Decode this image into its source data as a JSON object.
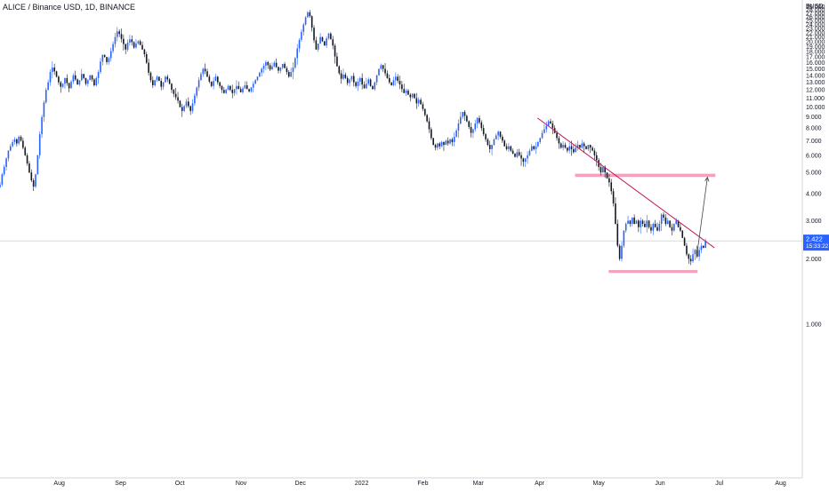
{
  "header": {
    "title": "ALICE / Binance USD, 1D, BINANCE",
    "currency": "BUSD"
  },
  "price_badge": {
    "price": "2.422",
    "countdown": "15:33:22",
    "color": "#2962ff"
  },
  "colors": {
    "up": "#2962ff",
    "down": "#131722",
    "trendline": "#c2185b",
    "zone": "#f48fb1",
    "arrow": "#434651"
  },
  "chart_data": {
    "type": "candlestick",
    "title": "ALICE / Binance USD, 1D, BINANCE",
    "ylabel": "BUSD",
    "y_ticks": [
      "1.000",
      "2.000",
      "3.000",
      "4.000",
      "5.000",
      "6.000",
      "7.000",
      "8.000",
      "9.000",
      "10.000",
      "11.000",
      "12.000",
      "13.000",
      "14.000",
      "15.000",
      "16.000",
      "17.000",
      "18.000",
      "19.000",
      "20.000",
      "21.000",
      "22.000",
      "23.000",
      "24.000",
      "25.000",
      "26.000",
      "27.000",
      "28.000",
      "29.000"
    ],
    "ylim": [
      0.2,
      29.4
    ],
    "x_ticks": [
      {
        "label": "Aug",
        "date": "2021-08-01"
      },
      {
        "label": "Sep",
        "date": "2021-09-01"
      },
      {
        "label": "Oct",
        "date": "2021-10-01"
      },
      {
        "label": "Nov",
        "date": "2021-11-01"
      },
      {
        "label": "Dec",
        "date": "2021-12-01"
      },
      {
        "label": "2022",
        "date": "2022-01-01"
      },
      {
        "label": "Feb",
        "date": "2022-02-01"
      },
      {
        "label": "Mar",
        "date": "2022-03-01"
      },
      {
        "label": "Apr",
        "date": "2022-04-01"
      },
      {
        "label": "May",
        "date": "2022-05-01"
      },
      {
        "label": "Jun",
        "date": "2022-06-01"
      },
      {
        "label": "Jul",
        "date": "2022-07-01"
      },
      {
        "label": "Aug",
        "date": "2022-08-01"
      }
    ],
    "xlim": [
      "2021-07-02",
      "2022-08-12"
    ],
    "candle_start": "2021-07-02",
    "closes": [
      4.4,
      4.9,
      5.3,
      5.8,
      6.3,
      6.6,
      6.9,
      7.1,
      6.8,
      7.3,
      7.0,
      6.5,
      6.0,
      5.5,
      5.0,
      4.6,
      4.3,
      4.9,
      6.0,
      7.5,
      9.0,
      10.5,
      12.0,
      13.0,
      14.5,
      15.2,
      14.6,
      13.8,
      13.0,
      12.4,
      12.8,
      13.6,
      12.9,
      12.2,
      13.1,
      14.0,
      13.4,
      12.7,
      13.3,
      14.2,
      13.6,
      12.8,
      13.3,
      14.0,
      13.4,
      12.6,
      13.6,
      14.5,
      16.2,
      17.4,
      17.0,
      16.1,
      16.8,
      18.1,
      19.5,
      21.0,
      22.3,
      21.7,
      20.6,
      19.5,
      18.4,
      19.8,
      20.5,
      19.9,
      18.8,
      19.6,
      20.1,
      19.3,
      18.4,
      17.5,
      16.0,
      14.4,
      13.3,
      12.6,
      13.3,
      13.8,
      13.2,
      12.4,
      13.0,
      13.8,
      13.4,
      12.8,
      12.0,
      11.5,
      11.1,
      10.7,
      10.0,
      9.6,
      10.1,
      10.6,
      10.1,
      9.6,
      10.4,
      11.3,
      12.3,
      13.3,
      14.2,
      15.0,
      14.6,
      13.8,
      13.1,
      12.5,
      13.2,
      13.8,
      13.0,
      12.5,
      12.0,
      11.6,
      12.0,
      12.5,
      12.0,
      11.6,
      12.1,
      12.5,
      12.1,
      11.7,
      12.2,
      12.6,
      12.1,
      11.8,
      12.3,
      12.8,
      13.3,
      13.8,
      14.4,
      15.0,
      15.5,
      16.1,
      15.6,
      14.9,
      15.4,
      16.0,
      15.3,
      14.7,
      15.2,
      15.8,
      15.1,
      14.5,
      13.8,
      14.5,
      15.2,
      16.8,
      18.6,
      20.4,
      22.2,
      24.0,
      25.9,
      27.3,
      26.2,
      23.2,
      20.3,
      18.4,
      19.6,
      21.0,
      20.1,
      19.2,
      20.7,
      21.8,
      20.5,
      19.2,
      17.1,
      15.4,
      14.3,
      13.5,
      14.1,
      13.6,
      12.9,
      13.4,
      13.9,
      13.0,
      12.5,
      13.1,
      13.6,
      12.7,
      12.2,
      12.8,
      13.4,
      12.5,
      12.1,
      13.0,
      14.0,
      15.0,
      15.6,
      15.0,
      14.3,
      13.6,
      13.0,
      12.6,
      13.3,
      13.8,
      13.2,
      12.7,
      12.1,
      11.6,
      11.9,
      11.4,
      11.1,
      11.5,
      11.0,
      10.4,
      10.8,
      10.3,
      9.8,
      9.2,
      8.6,
      7.9,
      7.2,
      6.7,
      6.5,
      6.8,
      6.6,
      6.9,
      6.7,
      7.0,
      6.8,
      7.1,
      6.9,
      7.3,
      7.8,
      8.4,
      9.0,
      9.5,
      9.1,
      8.6,
      8.1,
      7.6,
      7.9,
      8.4,
      8.9,
      8.5,
      8.0,
      7.5,
      7.1,
      6.7,
      6.4,
      6.7,
      7.1,
      7.4,
      7.7,
      7.3,
      7.0,
      6.6,
      6.4,
      6.6,
      6.3,
      6.1,
      5.9,
      6.2,
      6.0,
      5.8,
      5.6,
      5.8,
      6.0,
      6.3,
      6.6,
      6.4,
      6.6,
      6.9,
      7.2,
      7.6,
      7.9,
      8.2,
      8.6,
      8.4,
      8.0,
      7.6,
      7.2,
      6.8,
      6.5,
      6.7,
      6.5,
      6.3,
      6.6,
      6.4,
      6.2,
      6.5,
      6.7,
      6.5,
      6.8,
      6.6,
      6.4,
      6.7,
      6.5,
      6.3,
      6.0,
      5.7,
      5.3,
      5.0,
      5.3,
      5.0,
      4.7,
      4.5,
      4.1,
      3.6,
      2.9,
      2.3,
      2.0,
      2.3,
      2.7,
      2.9,
      3.0,
      2.9,
      3.1,
      2.9,
      3.0,
      2.8,
      3.0,
      2.9,
      2.8,
      3.0,
      2.8,
      2.7,
      2.9,
      2.8,
      2.7,
      2.9,
      3.2,
      3.1,
      2.9,
      3.0,
      2.8,
      2.7,
      2.9,
      3.0,
      2.8,
      2.7,
      2.5,
      2.3,
      2.1,
      2.0,
      1.95,
      2.1,
      2.2,
      2.05,
      2.2,
      2.3,
      2.25,
      2.422
    ],
    "current_price": 2.422,
    "annotations": {
      "trendline": {
        "from": {
          "date": "2022-03-31",
          "price": 8.9
        },
        "to": {
          "date": "2022-06-24",
          "price": 2.25
        }
      },
      "resistance_zone": {
        "from_date": "2022-04-19",
        "to_date": "2022-06-29",
        "price": 4.85
      },
      "support_zone": {
        "from_date": "2022-05-06",
        "to_date": "2022-06-20",
        "price": 1.75
      },
      "arrow": {
        "from": {
          "date": "2022-06-20",
          "price": 2.2
        },
        "to": {
          "date": "2022-06-25",
          "price": 4.75
        }
      }
    },
    "grid": false,
    "legend": "none"
  }
}
